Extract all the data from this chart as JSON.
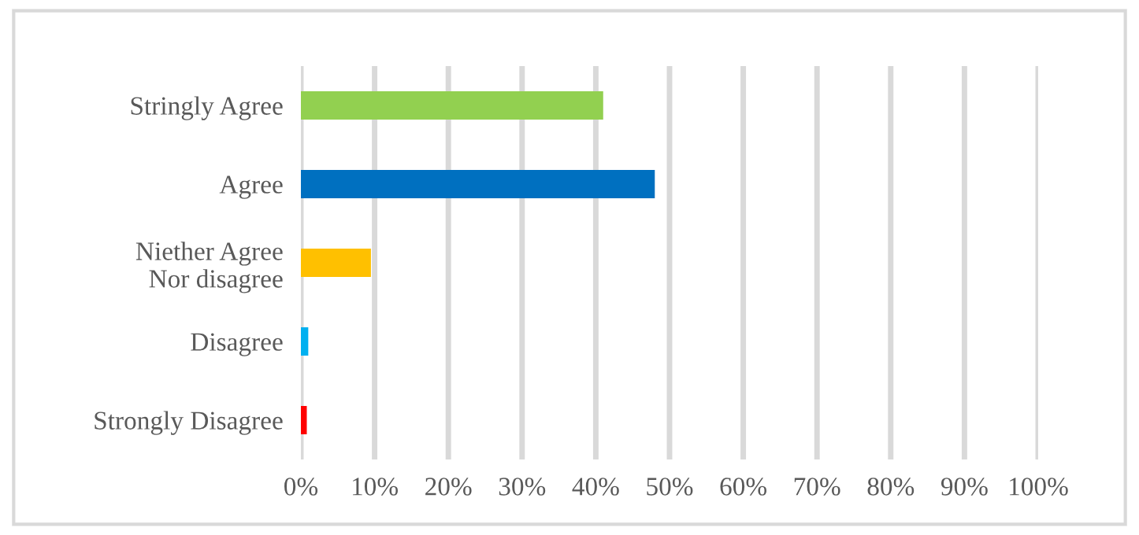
{
  "chart_data": {
    "type": "bar",
    "orientation": "horizontal",
    "categories": [
      "Stringly Agree",
      "Agree",
      "Niether Agree\nNor disagree",
      "Disagree",
      "Strongly Disagree"
    ],
    "values": [
      41,
      48,
      9.5,
      1,
      0.8
    ],
    "colors": [
      "#92d050",
      "#0070c0",
      "#ffc000",
      "#00b0f0",
      "#ff0000"
    ],
    "xlim": [
      0,
      100
    ],
    "xticks": [
      {
        "value": 0,
        "label": "0%"
      },
      {
        "value": 10,
        "label": "10%"
      },
      {
        "value": 20,
        "label": "20%"
      },
      {
        "value": 30,
        "label": "30%"
      },
      {
        "value": 40,
        "label": "40%"
      },
      {
        "value": 50,
        "label": "50%"
      },
      {
        "value": 60,
        "label": "60%"
      },
      {
        "value": 70,
        "label": "70%"
      },
      {
        "value": 80,
        "label": "80%"
      },
      {
        "value": 90,
        "label": "90%"
      },
      {
        "value": 100,
        "label": "100%"
      }
    ],
    "grid": "x",
    "legend": false
  }
}
